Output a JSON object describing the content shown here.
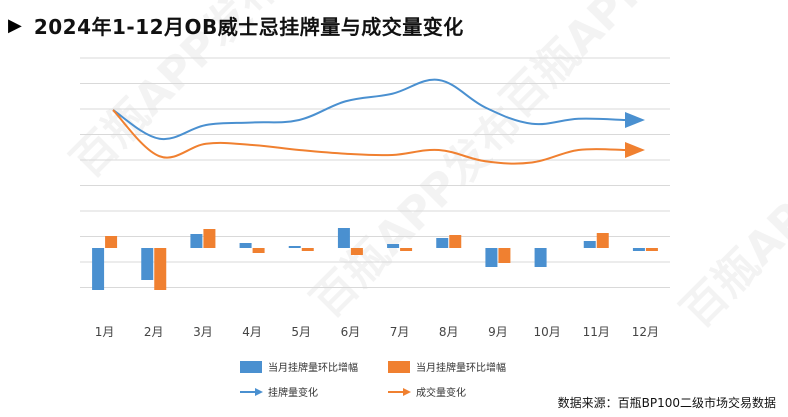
{
  "title": "2024年1-12月OB威士忌挂牌量与成交量变化",
  "title_marker": "▶",
  "source": "数据来源：百瓶BP100二级市场交易数据",
  "watermark": "百瓶APP发布",
  "colors": {
    "listing": "#4a90d0",
    "deal": "#f08030",
    "grid": "#d9d9d9"
  },
  "chart_data": {
    "type": "bar+line",
    "categories": [
      "1月",
      "2月",
      "3月",
      "4月",
      "5月",
      "6月",
      "7月",
      "8月",
      "9月",
      "10月",
      "11月",
      "12月"
    ],
    "bar_series": [
      {
        "name": "当月挂牌量环比增幅",
        "values": [
          -42,
          -32,
          14,
          5,
          2,
          20,
          4,
          10,
          -19,
          -19,
          7,
          -3
        ]
      },
      {
        "name": "当月挂牌量环比增幅",
        "values": [
          12,
          -42,
          19,
          -5,
          -3,
          -7,
          -3,
          13,
          -15,
          0,
          15,
          -3
        ]
      }
    ],
    "line_series": [
      {
        "name": "挂牌量变化",
        "values": [
          128,
          105,
          116,
          118,
          120,
          135,
          141,
          152,
          130,
          117,
          121,
          120
        ]
      },
      {
        "name": "成交量变化",
        "values": [
          128,
          91,
          101,
          100,
          96,
          93,
          92,
          96,
          87,
          86,
          96,
          96
        ]
      }
    ],
    "grid": true,
    "legend_position": "bottom"
  }
}
